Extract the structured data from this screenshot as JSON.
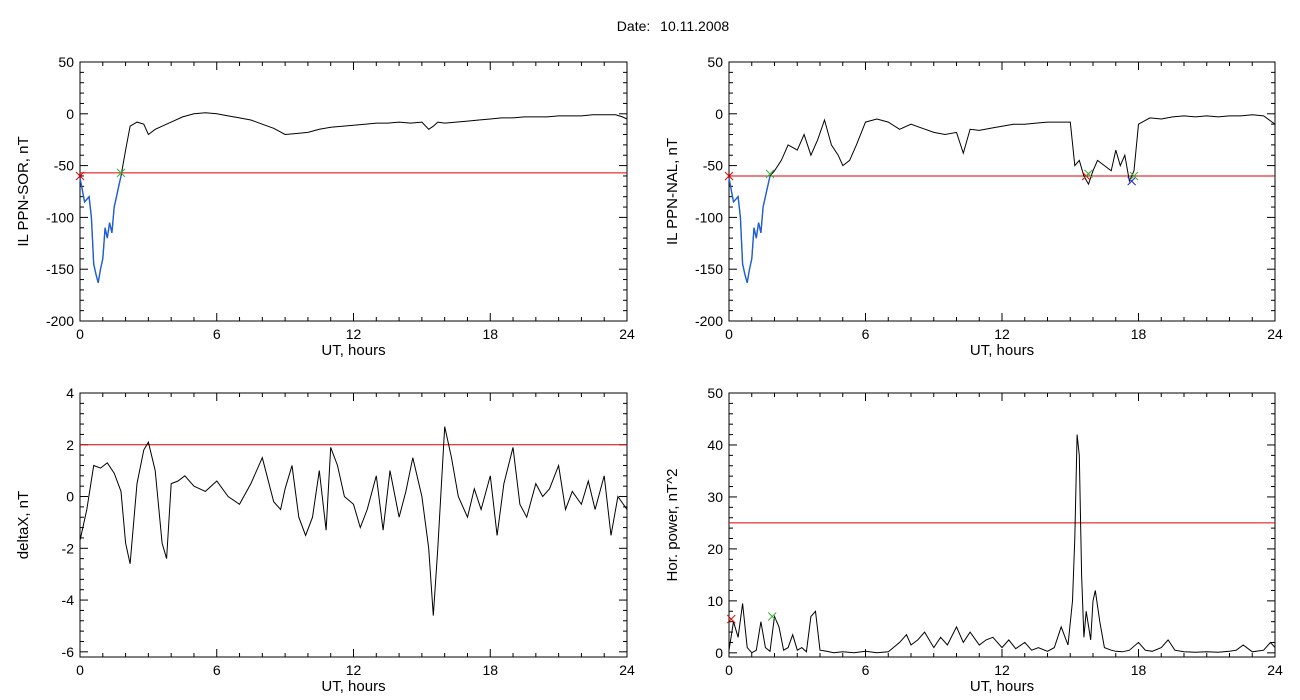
{
  "figure": {
    "date_label": "Date:",
    "date_value": "10.11.2008"
  },
  "colors": {
    "trace": "#000000",
    "threshold": "#e00000",
    "segment": "#1f5fd6",
    "marker_start": "#3ab03a",
    "marker_alt": "#e00000",
    "marker_blue": "#1f1fd0"
  },
  "chart_data": [
    {
      "type": "line",
      "id": "sor",
      "xlabel": "UT, hours",
      "ylabel": "IL PPN-SOR, nT",
      "xlim": [
        0,
        24
      ],
      "ylim": [
        -200,
        50
      ],
      "xticks": [
        0,
        6,
        12,
        18,
        24
      ],
      "yticks": [
        50,
        0,
        -50,
        -100,
        -150,
        -200
      ],
      "threshold": -57,
      "series": [
        {
          "x": [
            0,
            0.2,
            0.4,
            0.5,
            0.6,
            0.7,
            0.8,
            0.9,
            1.0,
            1.1,
            1.2,
            1.3,
            1.4,
            1.5,
            1.6,
            1.7,
            1.8,
            2.0,
            2.2,
            2.5,
            2.8,
            3.0,
            3.3,
            3.6,
            4.0,
            4.5,
            5.0,
            5.5,
            6.0,
            6.5,
            7.0,
            7.5,
            8.0,
            8.5,
            9.0,
            9.5,
            10.0,
            10.5,
            11.0,
            11.5,
            12.0,
            12.5,
            13.0,
            13.5,
            14.0,
            14.5,
            15.0,
            15.3,
            15.5,
            15.7,
            16.0,
            16.5,
            17.0,
            17.5,
            18.0,
            18.5,
            19.0,
            19.5,
            20.0,
            20.5,
            21.0,
            21.5,
            22.0,
            22.5,
            23.0,
            23.5,
            23.8,
            24.0
          ],
          "y": [
            -62,
            -85,
            -80,
            -100,
            -145,
            -155,
            -163,
            -150,
            -140,
            -110,
            -120,
            -105,
            -115,
            -90,
            -80,
            -70,
            -60,
            -35,
            -12,
            -8,
            -10,
            -20,
            -15,
            -12,
            -8,
            -3,
            0,
            1,
            0,
            -2,
            -4,
            -6,
            -10,
            -14,
            -20,
            -19,
            -18,
            -15,
            -13,
            -12,
            -11,
            -10,
            -9,
            -9,
            -8,
            -9,
            -8,
            -15,
            -12,
            -8,
            -9,
            -8,
            -7,
            -6,
            -5,
            -4,
            -4,
            -3,
            -3,
            -3,
            -2,
            -2,
            -2,
            -1,
            -1,
            -1,
            -3,
            -5
          ]
        }
      ],
      "highlight_segment": {
        "from": 0,
        "to": 1.8
      },
      "markers": [
        {
          "x": 1.8,
          "y": -57,
          "color": "marker_start"
        },
        {
          "x": 0.0,
          "y": -60,
          "color": "marker_alt"
        }
      ]
    },
    {
      "type": "line",
      "id": "nal",
      "xlabel": "UT, hours",
      "ylabel": "IL PPN-NAL, nT",
      "xlim": [
        0,
        24
      ],
      "ylim": [
        -200,
        50
      ],
      "xticks": [
        0,
        6,
        12,
        18,
        24
      ],
      "yticks": [
        50,
        0,
        -50,
        -100,
        -150,
        -200
      ],
      "threshold": -60,
      "series": [
        {
          "x": [
            0,
            0.2,
            0.4,
            0.5,
            0.6,
            0.7,
            0.8,
            0.9,
            1.0,
            1.1,
            1.2,
            1.3,
            1.4,
            1.5,
            1.6,
            1.7,
            1.8,
            2.0,
            2.3,
            2.6,
            3.0,
            3.3,
            3.6,
            3.9,
            4.2,
            4.5,
            4.8,
            5.0,
            5.3,
            5.6,
            6.0,
            6.5,
            7.0,
            7.5,
            8.0,
            8.5,
            9.0,
            9.5,
            10.0,
            10.3,
            10.6,
            11.0,
            11.5,
            12.0,
            12.5,
            13.0,
            13.5,
            14.0,
            14.5,
            15.0,
            15.2,
            15.4,
            15.6,
            15.8,
            16.0,
            16.2,
            16.5,
            16.8,
            17.0,
            17.2,
            17.4,
            17.6,
            17.8,
            18.0,
            18.5,
            19.0,
            19.5,
            20.0,
            20.5,
            21.0,
            21.5,
            22.0,
            22.5,
            23.0,
            23.5,
            24.0
          ],
          "y": [
            -62,
            -85,
            -80,
            -100,
            -145,
            -155,
            -163,
            -150,
            -140,
            -110,
            -120,
            -105,
            -115,
            -90,
            -80,
            -70,
            -60,
            -55,
            -45,
            -30,
            -35,
            -20,
            -40,
            -25,
            -6,
            -30,
            -40,
            -50,
            -45,
            -30,
            -8,
            -5,
            -8,
            -15,
            -10,
            -14,
            -18,
            -20,
            -18,
            -38,
            -15,
            -16,
            -14,
            -12,
            -10,
            -10,
            -9,
            -8,
            -8,
            -8,
            -50,
            -45,
            -60,
            -68,
            -55,
            -45,
            -50,
            -55,
            -35,
            -50,
            -40,
            -65,
            -55,
            -10,
            -4,
            -5,
            -3,
            -2,
            -3,
            -2,
            -3,
            -2,
            -2,
            -1,
            -2,
            -10
          ]
        }
      ],
      "highlight_segment": {
        "from": 0,
        "to": 1.8
      },
      "markers": [
        {
          "x": 1.8,
          "y": -58,
          "color": "marker_start"
        },
        {
          "x": 0.0,
          "y": -60,
          "color": "marker_alt"
        },
        {
          "x": 15.7,
          "y": -60,
          "color": "marker_alt"
        },
        {
          "x": 15.8,
          "y": -58,
          "color": "marker_start"
        },
        {
          "x": 17.7,
          "y": -65,
          "color": "marker_blue"
        },
        {
          "x": 17.8,
          "y": -60,
          "color": "marker_start"
        }
      ]
    },
    {
      "type": "line",
      "id": "deltax",
      "xlabel": "UT, hours",
      "ylabel": "deltaX, nT",
      "xlim": [
        0,
        24
      ],
      "ylim": [
        -6.2,
        4
      ],
      "xticks": [
        0,
        6,
        12,
        18,
        24
      ],
      "yticks": [
        4,
        2,
        0,
        -2,
        -4,
        -6
      ],
      "threshold": 2,
      "series": [
        {
          "x": [
            0,
            0.3,
            0.6,
            0.9,
            1.2,
            1.5,
            1.8,
            2.0,
            2.2,
            2.5,
            2.8,
            3.0,
            3.3,
            3.6,
            3.8,
            4.0,
            4.3,
            4.6,
            5.0,
            5.5,
            6.0,
            6.5,
            7.0,
            7.5,
            8.0,
            8.5,
            8.8,
            9.0,
            9.3,
            9.6,
            9.9,
            10.2,
            10.5,
            10.8,
            11.0,
            11.3,
            11.6,
            12.0,
            12.3,
            12.6,
            13.0,
            13.3,
            13.6,
            14.0,
            14.3,
            14.6,
            15.0,
            15.3,
            15.5,
            15.7,
            16.0,
            16.3,
            16.6,
            17.0,
            17.3,
            17.6,
            18.0,
            18.3,
            18.6,
            19.0,
            19.3,
            19.6,
            20.0,
            20.3,
            20.6,
            21.0,
            21.3,
            21.6,
            22.0,
            22.3,
            22.6,
            23.0,
            23.3,
            23.6,
            24.0
          ],
          "y": [
            -1.7,
            -0.5,
            1.2,
            1.1,
            1.3,
            0.9,
            0.2,
            -1.8,
            -2.6,
            0.5,
            1.8,
            2.1,
            1.0,
            -1.8,
            -2.4,
            0.5,
            0.6,
            0.8,
            0.4,
            0.2,
            0.6,
            0.0,
            -0.3,
            0.5,
            1.5,
            -0.2,
            -0.5,
            0.3,
            1.2,
            -0.8,
            -1.5,
            -0.8,
            1.0,
            -1.3,
            1.9,
            1.2,
            0.0,
            -0.3,
            -1.2,
            -0.5,
            0.8,
            -1.3,
            1.0,
            -0.8,
            0.2,
            1.5,
            0.0,
            -2.0,
            -4.6,
            -2.0,
            2.7,
            1.5,
            0.0,
            -0.8,
            0.3,
            -0.5,
            0.8,
            -1.5,
            0.5,
            1.9,
            -0.3,
            -0.8,
            0.5,
            0.0,
            0.3,
            1.2,
            -0.5,
            0.2,
            -0.3,
            0.6,
            -0.5,
            0.8,
            -1.5,
            0.0,
            -0.5
          ]
        }
      ]
    },
    {
      "type": "line",
      "id": "hpower",
      "xlabel": "UT, hours",
      "ylabel": "Hor. power, nT^2",
      "xlim": [
        0,
        24
      ],
      "ylim": [
        -0.8,
        50
      ],
      "xticks": [
        0,
        6,
        12,
        18,
        24
      ],
      "yticks": [
        50,
        40,
        30,
        20,
        10,
        0
      ],
      "threshold": 25,
      "series": [
        {
          "x": [
            0,
            0.2,
            0.4,
            0.6,
            0.8,
            1.0,
            1.2,
            1.4,
            1.6,
            1.8,
            2.0,
            2.2,
            2.4,
            2.6,
            2.8,
            3.0,
            3.2,
            3.4,
            3.6,
            3.8,
            4.0,
            4.3,
            4.6,
            5.0,
            5.5,
            6.0,
            6.5,
            7.0,
            7.5,
            7.8,
            8.0,
            8.3,
            8.6,
            9.0,
            9.3,
            9.6,
            10.0,
            10.3,
            10.6,
            11.0,
            11.3,
            11.6,
            12.0,
            12.3,
            12.6,
            13.0,
            13.3,
            13.6,
            14.0,
            14.3,
            14.6,
            14.9,
            15.1,
            15.2,
            15.3,
            15.4,
            15.5,
            15.6,
            15.7,
            15.9,
            16.0,
            16.1,
            16.3,
            16.5,
            16.8,
            17.0,
            17.3,
            17.6,
            18.0,
            18.3,
            18.6,
            19.0,
            19.3,
            19.6,
            20.0,
            20.5,
            21.0,
            21.5,
            22.0,
            22.3,
            22.6,
            23.0,
            23.5,
            23.8,
            24.0
          ],
          "y": [
            0.5,
            6.0,
            3.0,
            9.5,
            1.0,
            0.0,
            0.5,
            6.0,
            1.0,
            0.3,
            7.0,
            5.0,
            0.5,
            1.0,
            3.5,
            0.5,
            1.0,
            0.2,
            7.0,
            8.0,
            0.5,
            0.3,
            0.0,
            0.2,
            0.0,
            0.3,
            0.0,
            0.2,
            2.0,
            3.5,
            1.5,
            2.5,
            4.0,
            1.0,
            3.0,
            1.5,
            5.0,
            2.0,
            4.0,
            1.5,
            2.5,
            3.0,
            1.0,
            2.5,
            0.8,
            2.0,
            0.5,
            1.0,
            0.3,
            1.0,
            5.0,
            1.5,
            10.0,
            22.0,
            42.0,
            38.0,
            15.0,
            3.0,
            8.0,
            2.5,
            10.0,
            12.0,
            6.0,
            1.0,
            0.5,
            0.3,
            0.2,
            0.5,
            2.0,
            0.5,
            0.3,
            1.0,
            2.5,
            0.5,
            0.2,
            0.1,
            0.2,
            0.1,
            0.3,
            0.5,
            1.5,
            0.2,
            0.5,
            2.0,
            1.0
          ]
        }
      ],
      "markers": [
        {
          "x": 1.9,
          "y": 7.0,
          "color": "marker_start"
        },
        {
          "x": 0.1,
          "y": 6.5,
          "color": "marker_alt"
        }
      ]
    }
  ]
}
